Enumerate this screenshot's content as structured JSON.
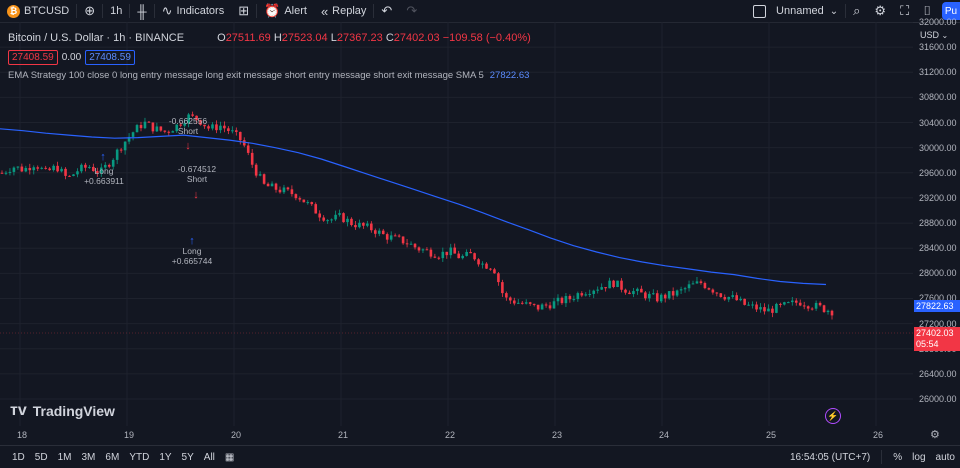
{
  "toolbar": {
    "symbol": "BTCUSD",
    "interval": "1h",
    "indicators_label": "Indicators",
    "alert_label": "Alert",
    "replay_label": "Replay",
    "layout_name": "Unnamed",
    "publish_label": "Pu"
  },
  "legend": {
    "title": "Bitcoin / U.S. Dollar · 1h · BINANCE",
    "o_label": "O",
    "o": "27511.69",
    "h_label": "H",
    "h": "27523.04",
    "l_label": "L",
    "l": "27367.23",
    "c_label": "C",
    "c": "27402.03",
    "change": "−109.58 (−0.40%)",
    "bid": "27408.59",
    "spread": "0.00",
    "ask": "27408.59"
  },
  "strategy": {
    "text": "EMA Strategy  100 close 0 long entry message long exit message short entry message short exit message SMA 5",
    "value": "27822.63"
  },
  "price_axis": {
    "currency": "USD",
    "ticks": [
      "32000.00",
      "31600.00",
      "31200.00",
      "30800.00",
      "30400.00",
      "30000.00",
      "29600.00",
      "29200.00",
      "28800.00",
      "28400.00",
      "28000.00",
      "27600.00",
      "27200.00",
      "26800.00",
      "26400.00",
      "26000.00"
    ],
    "sma_tag": "27822.63",
    "last_price_tag": "27402.03",
    "countdown": "05:54"
  },
  "time_axis": {
    "ticks": [
      "18",
      "19",
      "20",
      "21",
      "22",
      "23",
      "24",
      "25",
      "26"
    ]
  },
  "signals": [
    {
      "line1": "-0.662556",
      "line2": "Short"
    },
    {
      "line1": "Long",
      "line2": "+0.663911"
    },
    {
      "line1": "-0.674512",
      "line2": "Short"
    },
    {
      "line1": "Long",
      "line2": "+0.665744"
    }
  ],
  "brand": "TradingView",
  "bottombar": {
    "ranges": [
      "1D",
      "5D",
      "1M",
      "3M",
      "6M",
      "YTD",
      "1Y",
      "5Y",
      "All"
    ],
    "clock": "16:54:05 (UTC+7)",
    "pct": "%",
    "log": "log",
    "auto": "auto"
  },
  "colors": {
    "up": "#089981",
    "down": "#f23645",
    "sma": "#2962ff",
    "bg": "#131722"
  },
  "chart_data": {
    "type": "candlestick",
    "title": "Bitcoin / U.S. Dollar · 1h · BINANCE",
    "ylim": [
      26000,
      32000
    ],
    "x_ticks": [
      "18",
      "19",
      "20",
      "21",
      "22",
      "23",
      "24",
      "25",
      "26"
    ],
    "close_path": [
      29600,
      29700,
      29650,
      29750,
      29600,
      29700,
      29500,
      29650,
      29700,
      29600,
      29800,
      30050,
      30250,
      30400,
      30300,
      30250,
      30350,
      30500,
      30450,
      30300,
      30350,
      30250,
      30100,
      29700,
      29400,
      29350,
      29300,
      29250,
      29100,
      28950,
      28850,
      28900,
      28800,
      28750,
      28700,
      28600,
      28550,
      28500,
      28400,
      28350,
      28300,
      28350,
      28250,
      28300,
      28150,
      28100,
      27600,
      27550,
      27500,
      27450,
      27500,
      27550,
      27600,
      27700,
      27750,
      27800,
      27850,
      27750,
      27700,
      27650,
      27600,
      27650,
      27700,
      27800,
      27850,
      27750,
      27650,
      27600,
      27500,
      27450,
      27400,
      27450,
      27500,
      27550,
      27500,
      27450,
      27400
    ],
    "sma_path": [
      30300,
      30270,
      30230,
      30200,
      30170,
      30150,
      30160,
      30180,
      30200,
      30160,
      30120,
      30070,
      30000,
      29920,
      29820,
      29700,
      29580,
      29460,
      29340,
      29220,
      29100,
      28970,
      28830,
      28700,
      28560,
      28440,
      28340,
      28250,
      28180,
      28120,
      28070,
      28020,
      27980,
      27920,
      27870,
      27840,
      27822.63
    ]
  }
}
